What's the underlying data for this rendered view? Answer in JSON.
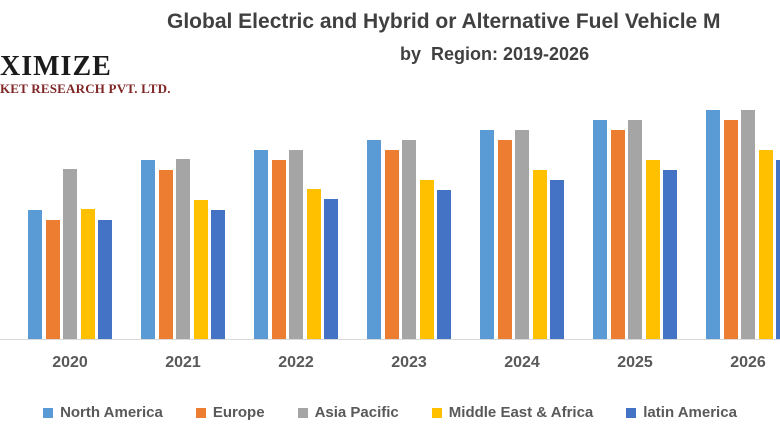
{
  "logo": {
    "line1": "XIMIZE",
    "line2": "KET RESEARCH PVT. LTD."
  },
  "chart_data": {
    "type": "bar",
    "title": "Global Electric and Hybrid or Alternative Fuel Vehicle M",
    "subtitle": "by  Region: 2019-2026",
    "categories": [
      "2020",
      "2021",
      "2022",
      "2023",
      "2024",
      "2025",
      "2026"
    ],
    "series": [
      {
        "name": "North America",
        "color": "#5B9BD5",
        "values": [
          129,
          179,
          189,
          199,
          209,
          219,
          229
        ]
      },
      {
        "name": "Europe",
        "color": "#ED7D31",
        "values": [
          119,
          169,
          179,
          189,
          199,
          209,
          219
        ]
      },
      {
        "name": "Asia Pacific",
        "color": "#A5A5A5",
        "values": [
          170,
          180,
          189,
          199,
          209,
          219,
          229
        ]
      },
      {
        "name": "Middle East & Africa",
        "color": "#FFC000",
        "values": [
          130,
          139,
          150,
          159,
          169,
          179,
          189
        ]
      },
      {
        "name": "latin America",
        "color": "#4472C4",
        "values": [
          119,
          129,
          140,
          149,
          159,
          169,
          179
        ]
      }
    ],
    "xlabel": "",
    "ylabel": "",
    "ylim": [
      0,
      244
    ],
    "grid": false,
    "y_axis_labels_visible": false,
    "legend_position": "bottom",
    "axis_line_color": "#D9D9D9",
    "tick_label_color": "#595959",
    "title_color": "#404040"
  }
}
